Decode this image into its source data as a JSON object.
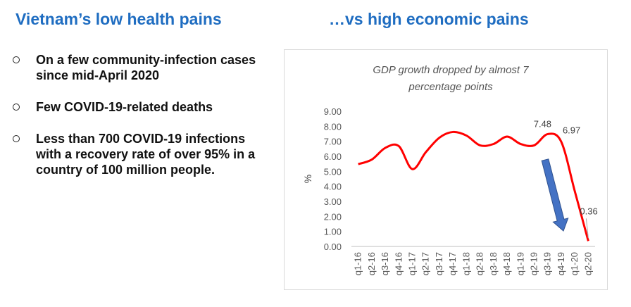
{
  "headings": {
    "left": "Vietnam’s low health pains",
    "right": "…vs high economic pains"
  },
  "bullets": [
    "On a few community-infection cases since mid-April 2020",
    "Few COVID-19-related deaths",
    "Less than 700 COVID-19 infections with a recovery rate of over 95% in a country of 100 million people."
  ],
  "colors": {
    "heading": "#1f6dc1",
    "line": "#ff0000",
    "arrow": "#4472c4",
    "arrow_outline": "#2f528f"
  },
  "chart_data": {
    "type": "line",
    "title_lines": [
      "GDP growth dropped by almost 7",
      "percentage points"
    ],
    "ylabel": "%",
    "xlabel": "",
    "ylim": [
      0,
      9
    ],
    "yticks": [
      "0.00",
      "1.00",
      "2.00",
      "3.00",
      "4.00",
      "5.00",
      "6.00",
      "7.00",
      "8.00",
      "9.00"
    ],
    "x": [
      "q1-16",
      "q2-16",
      "q3-16",
      "q4-16",
      "q1-17",
      "q2-17",
      "q3-17",
      "q4-17",
      "q1-18",
      "q2-18",
      "q3-18",
      "q4-18",
      "q1-19",
      "q2-19",
      "q3-19",
      "q4-19",
      "q1-20",
      "q2-20"
    ],
    "series": [
      {
        "values": [
          5.48,
          5.78,
          6.56,
          6.68,
          5.15,
          6.28,
          7.24,
          7.62,
          7.38,
          6.73,
          6.82,
          7.31,
          6.82,
          6.73,
          7.48,
          6.97,
          3.68,
          0.36
        ],
        "color": "#ff0000"
      }
    ],
    "data_labels": [
      {
        "index": 14,
        "text": "7.48"
      },
      {
        "index": 15,
        "text": "6.97"
      },
      {
        "index": 17,
        "text": "0.36"
      }
    ],
    "annotation": "downward arrow",
    "grid": false,
    "legend": "none"
  }
}
